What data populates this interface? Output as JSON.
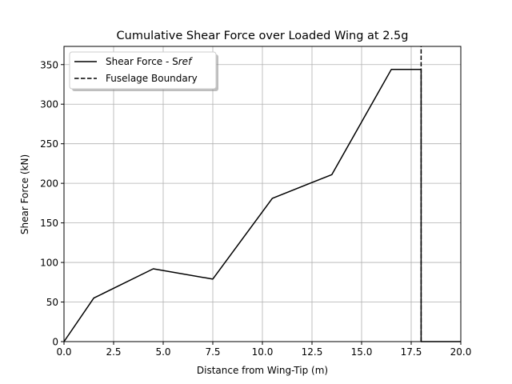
{
  "chart_data": {
    "type": "line",
    "title": "Cumulative Shear Force over Loaded Wing at 2.5g",
    "xlabel": "Distance from Wing-Tip (m)",
    "ylabel": "Shear Force (kN)",
    "xlim": [
      0,
      20
    ],
    "ylim": [
      0,
      373
    ],
    "grid": true,
    "legend_position": "top-left",
    "xticks": [
      0,
      2.5,
      5,
      7.5,
      10,
      12.5,
      15,
      17.5,
      20
    ],
    "xtick_labels": [
      "0.0",
      "2.5",
      "5.0",
      "7.5",
      "10.0",
      "12.5",
      "15.0",
      "17.5",
      "20.0"
    ],
    "yticks": [
      0,
      50,
      100,
      150,
      200,
      250,
      300,
      350
    ],
    "ytick_labels": [
      "0",
      "50",
      "100",
      "150",
      "200",
      "250",
      "300",
      "350"
    ],
    "series": [
      {
        "name": "Shear Force - Sref",
        "name_prefix": "Shear Force - S",
        "name_italic": "ref",
        "style": "solid",
        "color": "#000000",
        "x": [
          0,
          1.5,
          4.5,
          7.5,
          10.5,
          13.5,
          16.5,
          18,
          18,
          20
        ],
        "y": [
          0,
          55,
          92,
          79,
          181,
          211,
          344,
          344,
          0,
          0
        ]
      },
      {
        "name": "Fuselage Boundary",
        "style": "dashed",
        "color": "#000000",
        "x": [
          18,
          18
        ],
        "y": [
          0,
          373
        ]
      }
    ]
  }
}
